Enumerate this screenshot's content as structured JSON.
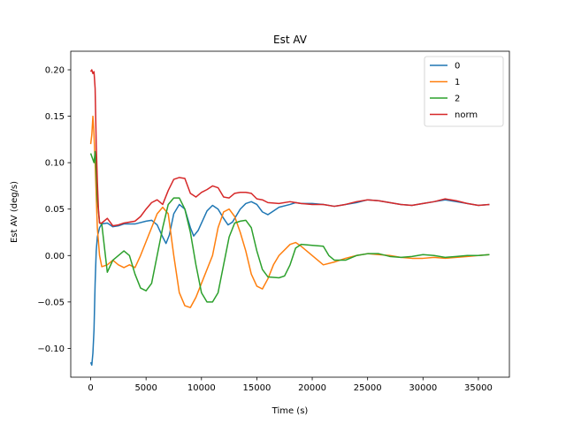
{
  "chart_data": {
    "type": "line",
    "title": "Est AV",
    "xlabel": "Time (s)",
    "ylabel": "Est AV (deg/s)",
    "xlim": [
      -1800,
      37800
    ],
    "ylim": [
      -0.131,
      0.22
    ],
    "xticks": [
      0,
      5000,
      10000,
      15000,
      20000,
      25000,
      30000,
      35000
    ],
    "xtick_labels": [
      "0",
      "5000",
      "10000",
      "15000",
      "20000",
      "25000",
      "30000",
      "35000"
    ],
    "yticks": [
      -0.1,
      -0.05,
      0.0,
      0.05,
      0.1,
      0.15,
      0.2
    ],
    "ytick_labels": [
      "−0.10",
      "−0.05",
      "0.00",
      "0.05",
      "0.10",
      "0.15",
      "0.20"
    ],
    "grid": false,
    "legend_position": "top-right",
    "series": [
      {
        "name": "0",
        "color": "#1f77b4",
        "points": [
          [
            0,
            -0.115
          ],
          [
            100,
            -0.118
          ],
          [
            200,
            -0.105
          ],
          [
            300,
            -0.08
          ],
          [
            400,
            -0.03
          ],
          [
            500,
            0.005
          ],
          [
            600,
            0.02
          ],
          [
            800,
            0.03
          ],
          [
            1000,
            0.034
          ],
          [
            1500,
            0.035
          ],
          [
            2000,
            0.031
          ],
          [
            2500,
            0.032
          ],
          [
            3000,
            0.034
          ],
          [
            4000,
            0.034
          ],
          [
            5000,
            0.037
          ],
          [
            5500,
            0.038
          ],
          [
            6000,
            0.033
          ],
          [
            6500,
            0.02
          ],
          [
            6800,
            0.013
          ],
          [
            7100,
            0.022
          ],
          [
            7500,
            0.045
          ],
          [
            8000,
            0.055
          ],
          [
            8500,
            0.05
          ],
          [
            9000,
            0.03
          ],
          [
            9300,
            0.021
          ],
          [
            9700,
            0.027
          ],
          [
            10500,
            0.048
          ],
          [
            11000,
            0.054
          ],
          [
            11500,
            0.05
          ],
          [
            12000,
            0.04
          ],
          [
            12400,
            0.033
          ],
          [
            12800,
            0.036
          ],
          [
            13500,
            0.05
          ],
          [
            14000,
            0.056
          ],
          [
            14500,
            0.058
          ],
          [
            15000,
            0.055
          ],
          [
            15500,
            0.047
          ],
          [
            16000,
            0.044
          ],
          [
            16500,
            0.048
          ],
          [
            17000,
            0.052
          ],
          [
            18000,
            0.055
          ],
          [
            18500,
            0.057
          ],
          [
            19000,
            0.056
          ],
          [
            20000,
            0.056
          ],
          [
            21000,
            0.055
          ],
          [
            22000,
            0.053
          ],
          [
            23000,
            0.055
          ],
          [
            24000,
            0.057
          ],
          [
            25000,
            0.06
          ],
          [
            26000,
            0.059
          ],
          [
            27000,
            0.057
          ],
          [
            28000,
            0.055
          ],
          [
            29000,
            0.054
          ],
          [
            30000,
            0.056
          ],
          [
            31000,
            0.058
          ],
          [
            32000,
            0.06
          ],
          [
            33000,
            0.058
          ],
          [
            34000,
            0.056
          ],
          [
            35000,
            0.054
          ],
          [
            36000,
            0.055
          ]
        ]
      },
      {
        "name": "1",
        "color": "#ff7f0e",
        "points": [
          [
            0,
            0.12
          ],
          [
            100,
            0.13
          ],
          [
            200,
            0.15
          ],
          [
            300,
            0.13
          ],
          [
            400,
            0.1
          ],
          [
            500,
            0.065
          ],
          [
            600,
            0.03
          ],
          [
            800,
            0.0
          ],
          [
            1000,
            -0.012
          ],
          [
            1500,
            -0.01
          ],
          [
            2000,
            -0.005
          ],
          [
            2500,
            -0.01
          ],
          [
            3000,
            -0.013
          ],
          [
            3500,
            -0.01
          ],
          [
            4000,
            -0.013
          ],
          [
            4500,
            0.0
          ],
          [
            5000,
            0.015
          ],
          [
            5500,
            0.03
          ],
          [
            6000,
            0.045
          ],
          [
            6500,
            0.052
          ],
          [
            7000,
            0.045
          ],
          [
            7500,
            0.0
          ],
          [
            8000,
            -0.04
          ],
          [
            8500,
            -0.054
          ],
          [
            9000,
            -0.056
          ],
          [
            9500,
            -0.045
          ],
          [
            10000,
            -0.03
          ],
          [
            11000,
            0.0
          ],
          [
            11500,
            0.03
          ],
          [
            12000,
            0.047
          ],
          [
            12500,
            0.05
          ],
          [
            13000,
            0.042
          ],
          [
            13500,
            0.025
          ],
          [
            14000,
            0.005
          ],
          [
            14500,
            -0.02
          ],
          [
            15000,
            -0.033
          ],
          [
            15500,
            -0.036
          ],
          [
            16000,
            -0.025
          ],
          [
            16500,
            -0.01
          ],
          [
            17000,
            0.0
          ],
          [
            18000,
            0.012
          ],
          [
            18500,
            0.014
          ],
          [
            19000,
            0.01
          ],
          [
            20000,
            0.0
          ],
          [
            21000,
            -0.01
          ],
          [
            22000,
            -0.007
          ],
          [
            23000,
            -0.003
          ],
          [
            24000,
            0.0
          ],
          [
            25000,
            0.002
          ],
          [
            26000,
            0.001
          ],
          [
            27000,
            0.0
          ],
          [
            28000,
            -0.002
          ],
          [
            29000,
            -0.003
          ],
          [
            30000,
            -0.003
          ],
          [
            31000,
            -0.002
          ],
          [
            32000,
            -0.003
          ],
          [
            33000,
            -0.002
          ],
          [
            34000,
            -0.001
          ],
          [
            35000,
            0.0
          ],
          [
            36000,
            0.001
          ]
        ]
      },
      {
        "name": "2",
        "color": "#2ca02c",
        "points": [
          [
            0,
            0.11
          ],
          [
            150,
            0.105
          ],
          [
            300,
            0.1
          ],
          [
            400,
            0.112
          ],
          [
            500,
            0.09
          ],
          [
            600,
            0.06
          ],
          [
            800,
            0.035
          ],
          [
            1000,
            0.034
          ],
          [
            1500,
            -0.018
          ],
          [
            2000,
            -0.005
          ],
          [
            2500,
            0.0
          ],
          [
            3000,
            0.005
          ],
          [
            3500,
            0.0
          ],
          [
            4000,
            -0.02
          ],
          [
            4500,
            -0.035
          ],
          [
            5000,
            -0.038
          ],
          [
            5500,
            -0.03
          ],
          [
            6000,
            0.0
          ],
          [
            6500,
            0.03
          ],
          [
            7000,
            0.055
          ],
          [
            7500,
            0.062
          ],
          [
            8000,
            0.062
          ],
          [
            8500,
            0.05
          ],
          [
            9000,
            0.025
          ],
          [
            9500,
            -0.01
          ],
          [
            10000,
            -0.04
          ],
          [
            10500,
            -0.05
          ],
          [
            11000,
            -0.05
          ],
          [
            11500,
            -0.04
          ],
          [
            12000,
            -0.01
          ],
          [
            12500,
            0.02
          ],
          [
            13000,
            0.035
          ],
          [
            13500,
            0.037
          ],
          [
            14000,
            0.038
          ],
          [
            14500,
            0.03
          ],
          [
            15000,
            0.005
          ],
          [
            15500,
            -0.015
          ],
          [
            16000,
            -0.023
          ],
          [
            17000,
            -0.024
          ],
          [
            17500,
            -0.022
          ],
          [
            18000,
            -0.01
          ],
          [
            18500,
            0.008
          ],
          [
            19000,
            0.012
          ],
          [
            20000,
            0.011
          ],
          [
            21000,
            0.01
          ],
          [
            21500,
            0.0
          ],
          [
            22000,
            -0.005
          ],
          [
            23000,
            -0.005
          ],
          [
            24000,
            0.0
          ],
          [
            25000,
            0.002
          ],
          [
            26000,
            0.002
          ],
          [
            27000,
            -0.001
          ],
          [
            28000,
            -0.002
          ],
          [
            29000,
            -0.001
          ],
          [
            30000,
            0.001
          ],
          [
            31000,
            0.0
          ],
          [
            32000,
            -0.002
          ],
          [
            33000,
            -0.001
          ],
          [
            34000,
            0.0
          ],
          [
            35000,
            0.0
          ],
          [
            36000,
            0.001
          ]
        ]
      },
      {
        "name": "norm",
        "color": "#d62728",
        "points": [
          [
            0,
            0.198
          ],
          [
            100,
            0.2
          ],
          [
            200,
            0.196
          ],
          [
            300,
            0.198
          ],
          [
            400,
            0.18
          ],
          [
            500,
            0.12
          ],
          [
            600,
            0.08
          ],
          [
            700,
            0.05
          ],
          [
            800,
            0.035
          ],
          [
            1000,
            0.035
          ],
          [
            1500,
            0.04
          ],
          [
            2000,
            0.032
          ],
          [
            2500,
            0.033
          ],
          [
            3000,
            0.035
          ],
          [
            4000,
            0.037
          ],
          [
            4500,
            0.042
          ],
          [
            5000,
            0.05
          ],
          [
            5500,
            0.057
          ],
          [
            6000,
            0.06
          ],
          [
            6500,
            0.055
          ],
          [
            7000,
            0.07
          ],
          [
            7500,
            0.082
          ],
          [
            8000,
            0.084
          ],
          [
            8500,
            0.083
          ],
          [
            9000,
            0.067
          ],
          [
            9500,
            0.063
          ],
          [
            10000,
            0.068
          ],
          [
            10500,
            0.071
          ],
          [
            11000,
            0.075
          ],
          [
            11500,
            0.073
          ],
          [
            12000,
            0.063
          ],
          [
            12500,
            0.062
          ],
          [
            13000,
            0.067
          ],
          [
            13500,
            0.068
          ],
          [
            14000,
            0.068
          ],
          [
            14500,
            0.067
          ],
          [
            15000,
            0.061
          ],
          [
            15500,
            0.06
          ],
          [
            16000,
            0.057
          ],
          [
            17000,
            0.056
          ],
          [
            18000,
            0.058
          ],
          [
            18500,
            0.057
          ],
          [
            19000,
            0.056
          ],
          [
            20000,
            0.055
          ],
          [
            21000,
            0.055
          ],
          [
            22000,
            0.053
          ],
          [
            23000,
            0.055
          ],
          [
            24000,
            0.058
          ],
          [
            25000,
            0.06
          ],
          [
            26000,
            0.059
          ],
          [
            27000,
            0.057
          ],
          [
            28000,
            0.055
          ],
          [
            29000,
            0.054
          ],
          [
            30000,
            0.056
          ],
          [
            31000,
            0.058
          ],
          [
            32000,
            0.061
          ],
          [
            33000,
            0.059
          ],
          [
            34000,
            0.056
          ],
          [
            35000,
            0.054
          ],
          [
            36000,
            0.055
          ]
        ]
      }
    ]
  }
}
